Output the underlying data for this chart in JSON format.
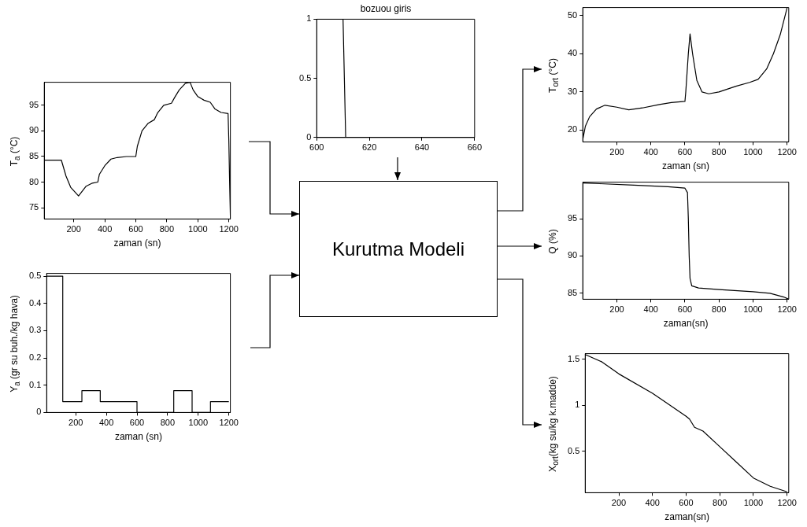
{
  "chart_data": [
    {
      "type": "line",
      "xlabel": "zaman (sn)",
      "ylabel": "T$_{a}$ (°C)",
      "color": "#000000",
      "xlim": [
        10,
        1210
      ],
      "ylim": [
        72.8,
        99.5
      ],
      "xticks": [
        200,
        400,
        600,
        800,
        1000,
        1200
      ],
      "yticks": [
        75,
        80,
        85,
        90,
        95
      ],
      "x": [
        10,
        120,
        150,
        180,
        231,
        280,
        320,
        355,
        365,
        400,
        440,
        480,
        540,
        600,
        610,
        640,
        680,
        720,
        740,
        780,
        830,
        850,
        880,
        920,
        950,
        970,
        1000,
        1040,
        1080,
        1110,
        1150,
        1195,
        1200,
        1205,
        1210
      ],
      "values": [
        84.3,
        84.3,
        81.2,
        79,
        77.3,
        79.2,
        79.8,
        80,
        81.5,
        83.2,
        84.5,
        84.8,
        85,
        85,
        87,
        90,
        91.5,
        92.2,
        93.5,
        95,
        95.4,
        96.5,
        98,
        99.3,
        99.5,
        98,
        96.7,
        96,
        95.6,
        94.3,
        93.6,
        93.4,
        88,
        80,
        73
      ]
    },
    {
      "type": "step",
      "xlabel": "zaman (sn)",
      "ylabel": "Y$_{a}$ (gr su buh./kg hava)",
      "color": "#000000",
      "xlim": [
        10,
        1210
      ],
      "ylim": [
        0,
        0.51
      ],
      "xticks": [
        200,
        400,
        600,
        800,
        1000,
        1200
      ],
      "yticks": [
        0,
        0.1,
        0.2,
        0.3,
        0.4,
        0.5
      ],
      "x": [
        10,
        115,
        240,
        360,
        600,
        840,
        960,
        1080,
        1200
      ],
      "values": [
        0.5,
        0.04,
        0.08,
        0.04,
        0,
        0.08,
        0,
        0.04,
        0.04
      ]
    },
    {
      "type": "line",
      "title": "bozuou giris",
      "color": "#000000",
      "xlim": [
        600,
        660
      ],
      "ylim": [
        0,
        1
      ],
      "xticks": [
        600,
        620,
        640,
        660
      ],
      "yticks": [
        0,
        0.5,
        1
      ],
      "x": [
        600,
        610,
        611,
        660
      ],
      "values": [
        1,
        1,
        0,
        0
      ]
    },
    {
      "type": "other",
      "title": "Kurutma Modeli"
    },
    {
      "type": "line",
      "xlabel": "zaman (sn)",
      "ylabel": "T$_{ort}$ (°C)",
      "color": "#000000",
      "xlim": [
        0,
        1210
      ],
      "ylim": [
        16.9,
        52.1
      ],
      "xticks": [
        200,
        400,
        600,
        800,
        1000,
        1200
      ],
      "yticks": [
        20,
        30,
        40,
        50
      ],
      "x": [
        0,
        15,
        40,
        80,
        130,
        200,
        270,
        350,
        450,
        520,
        600,
        605,
        620,
        630,
        645,
        670,
        700,
        740,
        800,
        900,
        980,
        1030,
        1080,
        1120,
        1160,
        1200
      ],
      "values": [
        17.5,
        21,
        23.5,
        25.5,
        26.5,
        26,
        25.3,
        25.8,
        26.7,
        27.2,
        27.5,
        30,
        40,
        45.2,
        40,
        33,
        30,
        29.5,
        30,
        31.5,
        32.5,
        33.3,
        36,
        40,
        45,
        52
      ]
    },
    {
      "type": "line",
      "xlabel": "zaman(sn)",
      "ylabel": "Q (%)",
      "color": "#000000",
      "xlim": [
        0,
        1210
      ],
      "ylim": [
        84.2,
        99.9
      ],
      "xticks": [
        200,
        400,
        600,
        800,
        1000,
        1200
      ],
      "yticks": [
        85,
        90,
        95
      ],
      "x": [
        0,
        100,
        300,
        500,
        600,
        615,
        620,
        625,
        630,
        640,
        680,
        800,
        1000,
        1100,
        1180,
        1210
      ],
      "values": [
        99.8,
        99.7,
        99.5,
        99.3,
        99.1,
        98.5,
        95,
        90,
        87,
        86,
        85.7,
        85.5,
        85.2,
        85,
        84.5,
        84.2
      ]
    },
    {
      "type": "line",
      "xlabel": "zaman(sn)",
      "ylabel": "X$_{ort}$(kg su/kg k.madde)",
      "color": "#000000",
      "xlim": [
        0,
        1210
      ],
      "ylim": [
        0.05,
        1.56
      ],
      "xticks": [
        200,
        400,
        600,
        800,
        1000,
        1200
      ],
      "yticks": [
        0.5,
        1,
        1.5
      ],
      "x": [
        0,
        100,
        200,
        400,
        600,
        620,
        650,
        700,
        800,
        900,
        1000,
        1100,
        1200
      ],
      "values": [
        1.55,
        1.47,
        1.34,
        1.13,
        0.88,
        0.85,
        0.76,
        0.72,
        0.55,
        0.38,
        0.21,
        0.12,
        0.06
      ]
    }
  ]
}
